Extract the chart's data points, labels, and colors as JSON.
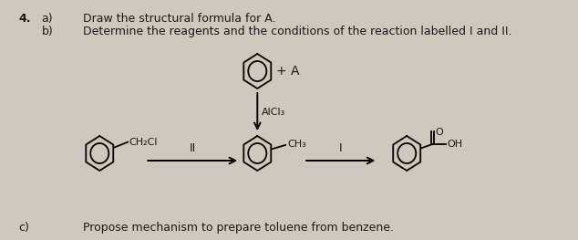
{
  "bg_color": "#cec8be",
  "text_color": "#1a1a1a",
  "title_num": "4.",
  "line_a_num": "a)",
  "line_a_text": "Draw the structural formula for A.",
  "line_b_num": "b)",
  "line_b_text": "Determine the reagents and the conditions of the reaction labelled I and II.",
  "line_c_num": "c)",
  "line_c_text": "Propose mechanism to prepare toluene from benzene.",
  "plus_A": "+ A",
  "AlCl3": "AlCl₃",
  "CH3_label": "CH₃",
  "CH2Cl_label": "CH₂Cl",
  "label_I": "I",
  "label_II": "II",
  "OH_label": "OH",
  "O_label": "O"
}
